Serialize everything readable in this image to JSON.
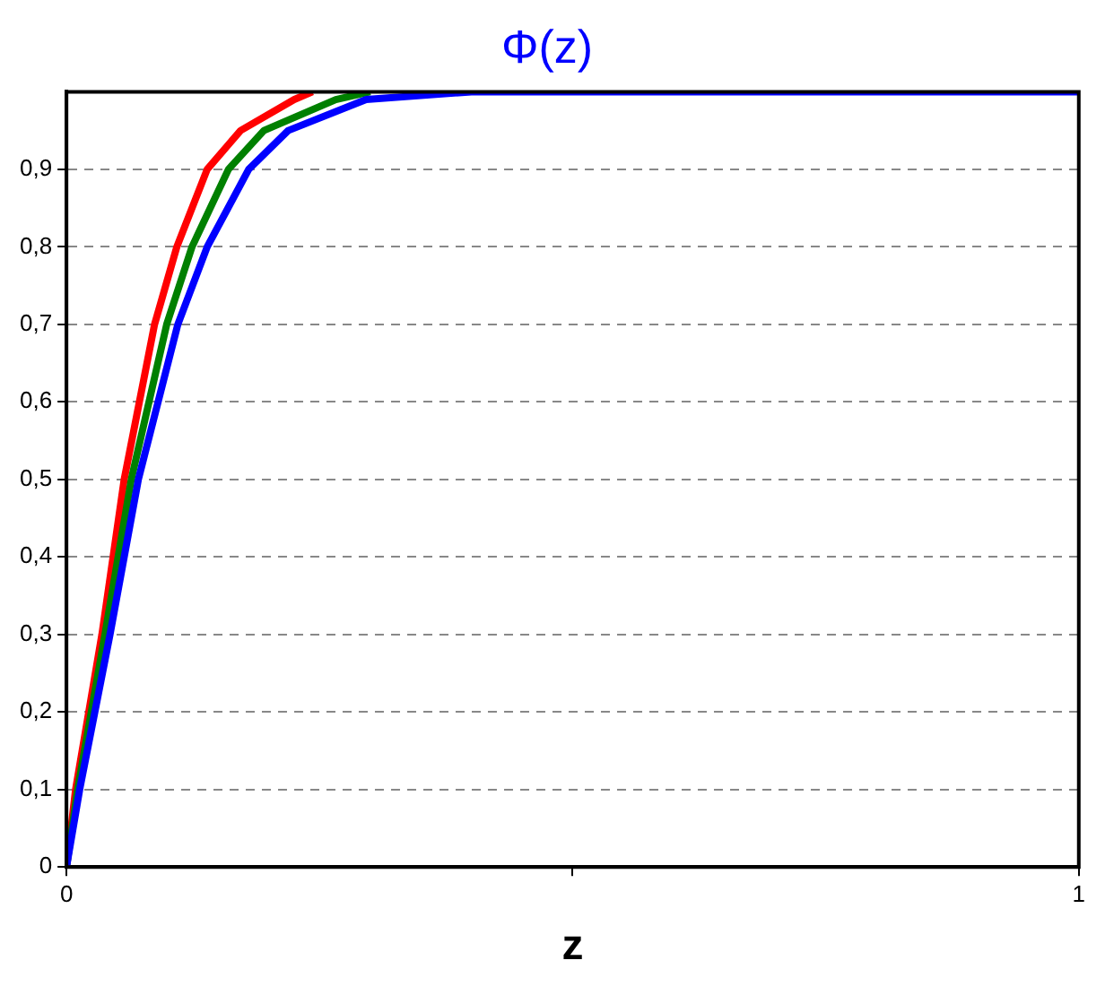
{
  "chart_data": {
    "type": "line",
    "title": "Φ(z)",
    "xlabel": "z",
    "xlim": [
      0,
      1
    ],
    "xticks": [
      0,
      {
        "value": 0.5,
        "label": null
      },
      1
    ],
    "ylim": [
      0,
      1
    ],
    "yticks": [
      0,
      {
        "value": 0.1,
        "label": "0,1"
      },
      {
        "value": 0.2,
        "label": "0,2"
      },
      {
        "value": 0.3,
        "label": "0,3"
      },
      {
        "value": 0.4,
        "label": "0,4"
      },
      {
        "value": 0.5,
        "label": "0,5"
      },
      {
        "value": 0.6,
        "label": "0,6"
      },
      {
        "value": 0.7,
        "label": "0,7"
      },
      {
        "value": 0.8,
        "label": "0,8"
      },
      {
        "value": 0.9,
        "label": "0,9"
      }
    ],
    "grid": "y",
    "marker": "none",
    "line_style": "solid",
    "legend": false,
    "series": [
      {
        "color": "#ff0000",
        "x": [
          0,
          0.009,
          0.035,
          0.057,
          0.087,
          0.109,
          0.139,
          0.172,
          0.225,
          0.243
        ],
        "values": [
          0,
          0.1,
          0.3,
          0.5,
          0.7,
          0.8,
          0.9,
          0.95,
          0.99,
          1
        ]
      },
      {
        "color": "#008000",
        "x": [
          0,
          0.011,
          0.038,
          0.064,
          0.099,
          0.124,
          0.16,
          0.195,
          0.266,
          0.3
        ],
        "values": [
          0,
          0.1,
          0.3,
          0.5,
          0.7,
          0.8,
          0.9,
          0.95,
          0.99,
          1
        ]
      },
      {
        "color": "#0000ff",
        "x": [
          0,
          0.013,
          0.043,
          0.071,
          0.11,
          0.139,
          0.18,
          0.219,
          0.296,
          0.4,
          1
        ],
        "values": [
          0,
          0.1,
          0.3,
          0.5,
          0.7,
          0.8,
          0.9,
          0.95,
          0.99,
          1,
          1
        ]
      }
    ]
  }
}
